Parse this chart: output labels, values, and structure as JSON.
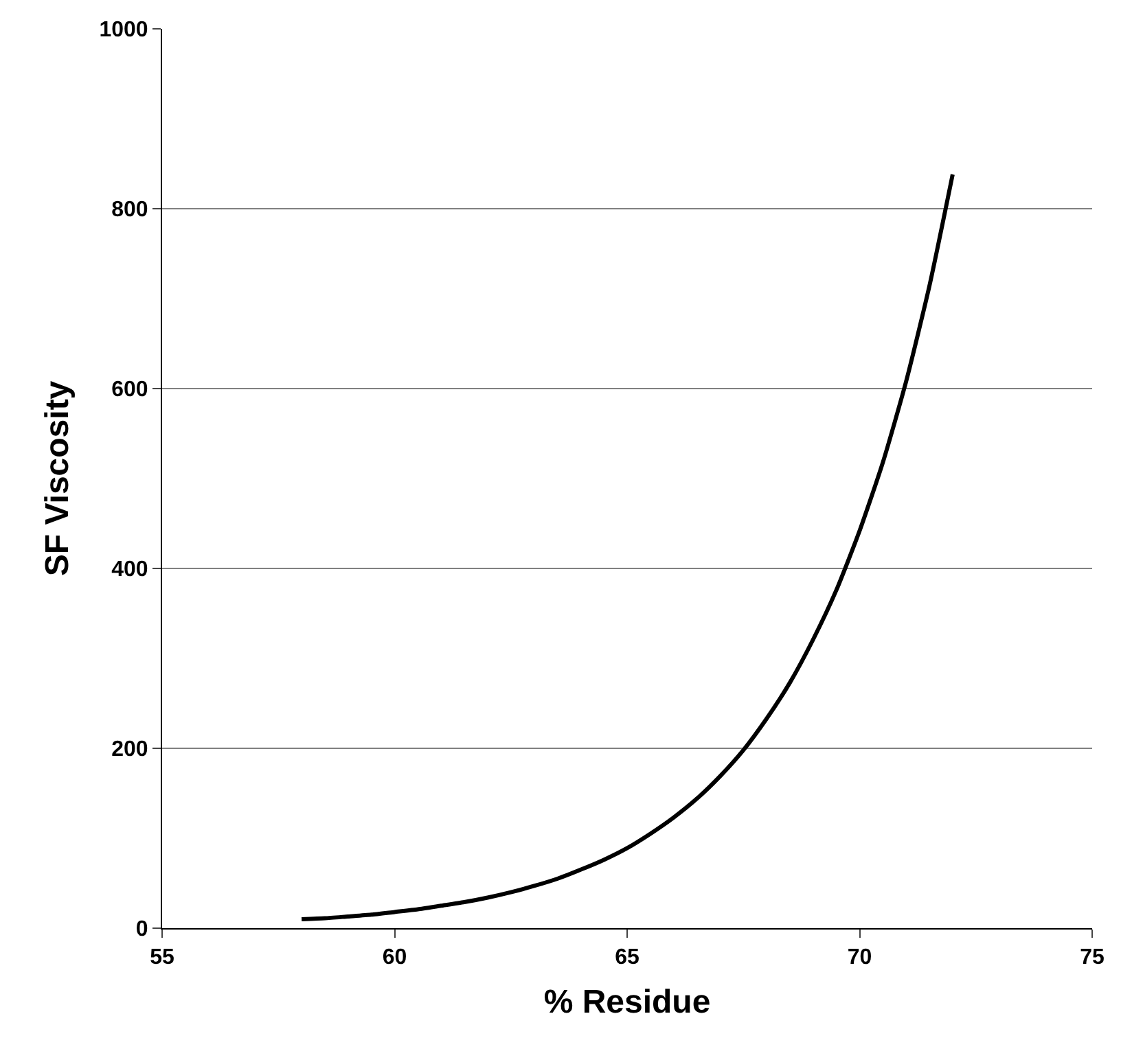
{
  "chart_data": {
    "type": "line",
    "xlabel": "% Residue",
    "ylabel": "SF Viscosity",
    "xlim": [
      55,
      75
    ],
    "xticks": [
      55,
      60,
      65,
      70,
      75
    ],
    "ylim": [
      0,
      1000
    ],
    "yticks": [
      0,
      200,
      400,
      600,
      800,
      1000
    ],
    "grid": "y",
    "marker": "none",
    "line_style": "solid",
    "series": [
      {
        "color": "#000000",
        "x": [
          58,
          58.5,
          59,
          59.5,
          60,
          60.5,
          61,
          61.5,
          62,
          62.5,
          63,
          63.5,
          64,
          64.5,
          65,
          65.5,
          66,
          66.5,
          67,
          67.5,
          68,
          68.5,
          69,
          69.5,
          70,
          70.5,
          71,
          71.5,
          72
        ],
        "values": [
          10,
          11,
          13,
          15,
          18,
          21,
          25,
          29,
          34,
          40,
          47,
          55,
          65,
          76,
          89,
          105,
          123,
          144,
          169,
          198,
          233,
          273,
          321,
          376,
          442,
          518,
          608,
          714,
          838
        ]
      }
    ]
  }
}
